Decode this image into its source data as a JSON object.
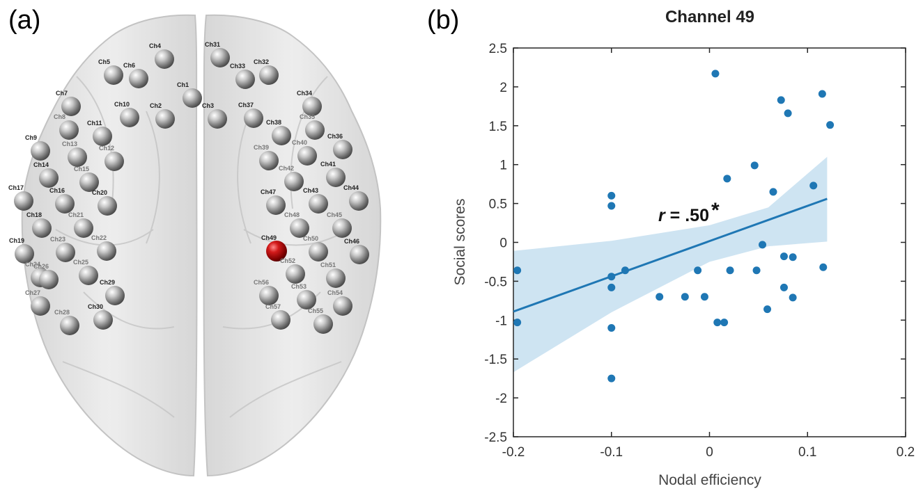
{
  "panels": {
    "a_label": "(a)",
    "b_label": "(b)"
  },
  "brain": {
    "highlighted_channel": "Ch49",
    "colors": {
      "electrode": "#8c8c8c",
      "highlight": "#b01010",
      "brain": "#d9d9d9"
    },
    "channels": [
      {
        "id": "Ch1",
        "hl": false
      },
      {
        "id": "Ch2",
        "hl": false
      },
      {
        "id": "Ch3",
        "hl": false
      },
      {
        "id": "Ch4",
        "hl": false
      },
      {
        "id": "Ch5",
        "hl": false
      },
      {
        "id": "Ch6",
        "hl": false
      },
      {
        "id": "Ch7",
        "hl": false
      },
      {
        "id": "Ch8",
        "hl": false
      },
      {
        "id": "Ch9",
        "hl": false
      },
      {
        "id": "Ch10",
        "hl": false
      },
      {
        "id": "Ch11",
        "hl": false
      },
      {
        "id": "Ch12",
        "hl": false
      },
      {
        "id": "Ch13",
        "hl": false
      },
      {
        "id": "Ch14",
        "hl": false
      },
      {
        "id": "Ch15",
        "hl": false
      },
      {
        "id": "Ch16",
        "hl": false
      },
      {
        "id": "Ch17",
        "hl": false
      },
      {
        "id": "Ch18",
        "hl": false
      },
      {
        "id": "Ch19",
        "hl": false
      },
      {
        "id": "Ch20",
        "hl": false
      },
      {
        "id": "Ch21",
        "hl": false
      },
      {
        "id": "Ch22",
        "hl": false
      },
      {
        "id": "Ch23",
        "hl": false
      },
      {
        "id": "Ch24",
        "hl": false
      },
      {
        "id": "Ch25",
        "hl": false
      },
      {
        "id": "Ch26",
        "hl": false
      },
      {
        "id": "Ch27",
        "hl": false
      },
      {
        "id": "Ch28",
        "hl": false
      },
      {
        "id": "Ch29",
        "hl": false
      },
      {
        "id": "Ch30",
        "hl": false
      },
      {
        "id": "Ch31",
        "hl": false
      },
      {
        "id": "Ch32",
        "hl": false
      },
      {
        "id": "Ch33",
        "hl": false
      },
      {
        "id": "Ch34",
        "hl": false
      },
      {
        "id": "Ch35",
        "hl": false
      },
      {
        "id": "Ch36",
        "hl": false
      },
      {
        "id": "Ch37",
        "hl": false
      },
      {
        "id": "Ch38",
        "hl": false
      },
      {
        "id": "Ch39",
        "hl": false
      },
      {
        "id": "Ch40",
        "hl": false
      },
      {
        "id": "Ch41",
        "hl": false
      },
      {
        "id": "Ch42",
        "hl": false
      },
      {
        "id": "Ch43",
        "hl": false
      },
      {
        "id": "Ch44",
        "hl": false
      },
      {
        "id": "Ch45",
        "hl": false
      },
      {
        "id": "Ch46",
        "hl": false
      },
      {
        "id": "Ch47",
        "hl": false
      },
      {
        "id": "Ch48",
        "hl": false
      },
      {
        "id": "Ch49",
        "hl": true
      },
      {
        "id": "Ch50",
        "hl": false
      },
      {
        "id": "Ch51",
        "hl": false
      },
      {
        "id": "Ch52",
        "hl": false
      },
      {
        "id": "Ch53",
        "hl": false
      },
      {
        "id": "Ch54",
        "hl": false
      },
      {
        "id": "Ch55",
        "hl": false
      },
      {
        "id": "Ch56",
        "hl": false
      },
      {
        "id": "Ch57",
        "hl": false
      }
    ]
  },
  "chart_data": {
    "type": "scatter",
    "title": "Channel 49",
    "xlabel": "Nodal efficiency",
    "ylabel": "Social scores",
    "xlim": [
      -0.2,
      0.2
    ],
    "ylim": [
      -2.5,
      2.5
    ],
    "xticks": [
      -0.2,
      -0.1,
      0,
      0.1,
      0.2
    ],
    "xtick_labels": [
      "-0.2",
      "-0.1",
      "0",
      "0.1",
      "0.2"
    ],
    "yticks": [
      2.5,
      2,
      1.5,
      1,
      0.5,
      0,
      -0.5,
      -1,
      -1.5,
      -2,
      -2.5
    ],
    "ytick_labels": [
      "2.5",
      "2",
      "1.5",
      "1",
      "0.5",
      "0",
      "-0.5",
      "-1",
      "-1.5",
      "-2",
      "-2.5"
    ],
    "grid": false,
    "color": "#1f77b4",
    "ci_color": "#c6dff0",
    "annotation": {
      "r_symbol": "r",
      "text": " = .50",
      "star": "*"
    },
    "points": [
      [
        -0.196,
        -0.36
      ],
      [
        -0.196,
        -1.03
      ],
      [
        -0.1,
        0.6
      ],
      [
        -0.1,
        0.47
      ],
      [
        -0.1,
        -0.44
      ],
      [
        -0.1,
        -0.58
      ],
      [
        -0.1,
        -1.1
      ],
      [
        -0.1,
        -1.75
      ],
      [
        -0.086,
        -0.36
      ],
      [
        -0.051,
        -0.7
      ],
      [
        -0.025,
        -0.7
      ],
      [
        -0.012,
        -0.36
      ],
      [
        -0.005,
        -0.7
      ],
      [
        0.006,
        2.17
      ],
      [
        0.008,
        -1.03
      ],
      [
        0.015,
        -1.03
      ],
      [
        0.018,
        0.82
      ],
      [
        0.021,
        -0.36
      ],
      [
        0.046,
        0.99
      ],
      [
        0.048,
        -0.36
      ],
      [
        0.054,
        -0.03
      ],
      [
        0.059,
        -0.86
      ],
      [
        0.065,
        0.65
      ],
      [
        0.073,
        1.83
      ],
      [
        0.076,
        -0.18
      ],
      [
        0.076,
        -0.58
      ],
      [
        0.08,
        1.66
      ],
      [
        0.085,
        -0.19
      ],
      [
        0.085,
        -0.71
      ],
      [
        0.106,
        0.73
      ],
      [
        0.115,
        1.91
      ],
      [
        0.116,
        -0.32
      ],
      [
        0.123,
        1.51
      ]
    ],
    "fit_line": {
      "x": [
        -0.2,
        0.12
      ],
      "y": [
        -0.89,
        0.56
      ]
    },
    "ci_upper": {
      "x": [
        -0.2,
        -0.1,
        0.0,
        0.06,
        0.12
      ],
      "y": [
        -0.11,
        0.02,
        0.22,
        0.45,
        1.1
      ]
    },
    "ci_lower": {
      "x": [
        -0.2,
        -0.1,
        0.0,
        0.06,
        0.12
      ],
      "y": [
        -1.67,
        -0.9,
        -0.25,
        -0.05,
        0.01
      ]
    }
  }
}
